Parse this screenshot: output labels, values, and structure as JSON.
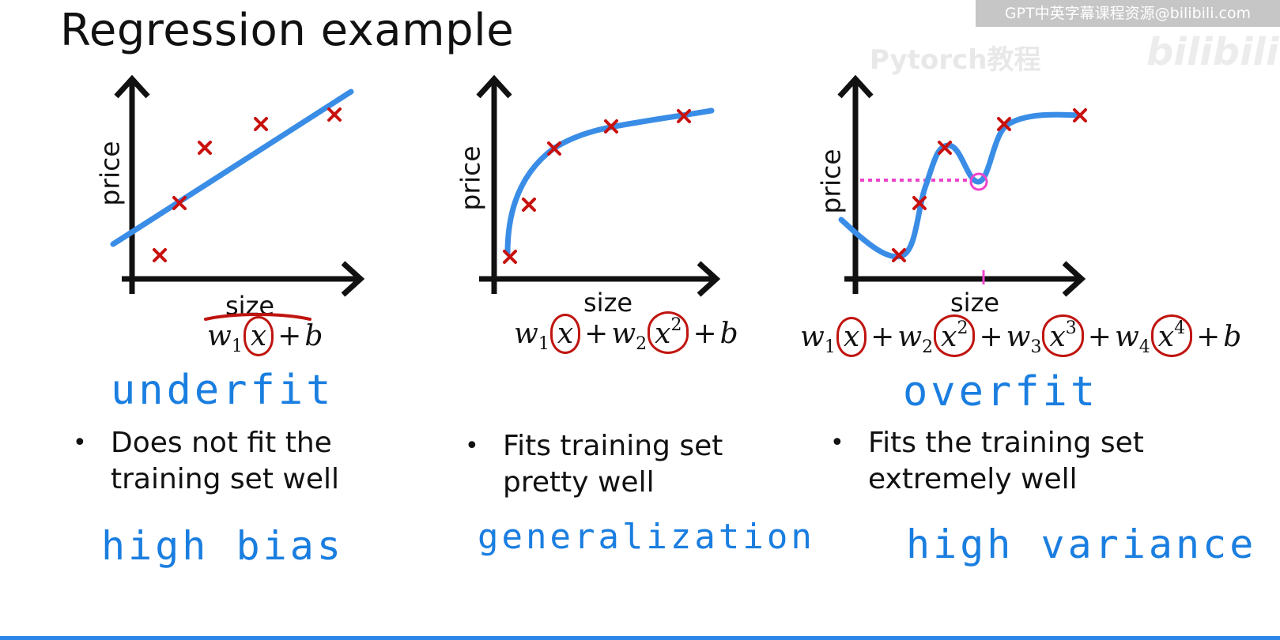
{
  "title": "Regression example",
  "watermark": {
    "bar_text": "GPT中英字幕课程资源@bilibili.com",
    "channel_text": "Pytorch教程",
    "logo_text": "bilibili"
  },
  "accent_colors": {
    "curve": "#3a8de6",
    "marker": "#c8110e",
    "annotation": "#1a7ee0",
    "dotted": "#ee44cc"
  },
  "panels": [
    {
      "ylabel": "price",
      "xlabel": "size",
      "formula_terms": [
        "w1x",
        "b"
      ],
      "handwritten_label": "underfit",
      "bullet": [
        "Does not fit the",
        "training set well"
      ],
      "bottom_note": "high bias"
    },
    {
      "ylabel": "price",
      "xlabel": "size",
      "formula_terms": [
        "w1x",
        "w2x2",
        "b"
      ],
      "handwritten_label": "",
      "bullet": [
        "Fits training set",
        "pretty well"
      ],
      "bottom_note": "generalization"
    },
    {
      "ylabel": "price",
      "xlabel": "size",
      "formula_terms": [
        "w1x",
        "w2x2",
        "w3x3",
        "w4x4",
        "b"
      ],
      "handwritten_label": "overfit",
      "bullet": [
        "Fits the training set",
        "extremely well"
      ],
      "bottom_note": "high variance"
    }
  ],
  "formula_parts": {
    "w": "w",
    "x": "x",
    "b": "b",
    "plus": "+",
    "sub1": "1",
    "sub2": "2",
    "sub3": "3",
    "sub4": "4",
    "sup2": "2",
    "sup3": "3",
    "sup4": "4"
  }
}
